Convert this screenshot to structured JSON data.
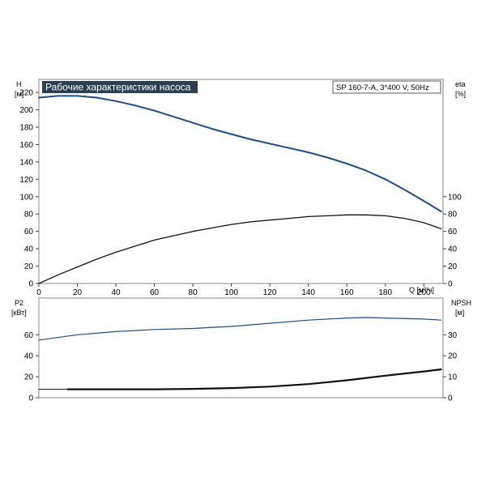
{
  "chart_data": [
    {
      "type": "line",
      "title": "Рабочие характеристики насоса",
      "subtitle": "SP 160-7-A, 3*400 V, 50Hz",
      "xlabel": "Q [м³/ч]",
      "ylabel": "H",
      "ylabel_unit": "[м]",
      "y2label": "eta",
      "y2label_unit": "[%]",
      "xlim": [
        0,
        210
      ],
      "ylim": [
        0,
        235
      ],
      "y2lim": [
        0,
        235
      ],
      "x_ticks": [
        "0",
        "20",
        "40",
        "60",
        "80",
        "100",
        "120",
        "140",
        "160",
        "180",
        "200"
      ],
      "y_ticks": [
        "0",
        "20",
        "40",
        "60",
        "80",
        "100",
        "120",
        "140",
        "160",
        "180",
        "200",
        "220"
      ],
      "y2_ticks": [
        "0",
        "20",
        "40",
        "60",
        "80",
        "100"
      ],
      "grid": false,
      "series": [
        {
          "axis": "left",
          "color": "#1c4f86",
          "x": [
            0,
            10,
            20,
            30,
            40,
            50,
            60,
            70,
            80,
            90,
            100,
            110,
            120,
            130,
            140,
            150,
            160,
            170,
            180,
            190,
            200,
            209
          ],
          "values": [
            214,
            216,
            216,
            214,
            210,
            205,
            199,
            192,
            185,
            178,
            172,
            166,
            161,
            156,
            151,
            145,
            138,
            130,
            120,
            108,
            95,
            83
          ]
        },
        {
          "axis": "right",
          "color": "#111111",
          "x": [
            0,
            10,
            20,
            30,
            40,
            50,
            60,
            70,
            80,
            90,
            100,
            110,
            120,
            130,
            140,
            150,
            160,
            170,
            180,
            190,
            200,
            209
          ],
          "values": [
            0,
            10,
            19,
            28,
            36,
            43,
            50,
            55,
            60,
            64,
            68,
            71,
            73,
            75,
            77,
            78,
            79,
            79,
            78,
            75,
            70,
            63
          ]
        }
      ]
    },
    {
      "type": "line",
      "ylabel": "P2",
      "ylabel_unit": "[кВт]",
      "y2label": "NPSH",
      "y2label_unit": "[м]",
      "xlim": [
        0,
        210
      ],
      "ylim": [
        0,
        95
      ],
      "y2lim": [
        0,
        47.5
      ],
      "y_ticks": [
        "0",
        "20",
        "40",
        "60"
      ],
      "y2_ticks": [
        "0",
        "10",
        "20",
        "30"
      ],
      "grid": false,
      "series": [
        {
          "axis": "left",
          "color": "#1c4f86",
          "x": [
            0,
            20,
            40,
            60,
            80,
            100,
            120,
            140,
            160,
            170,
            180,
            200,
            209
          ],
          "values": [
            55,
            60,
            63,
            65,
            66,
            68,
            71,
            74,
            76,
            76.5,
            76,
            75,
            74
          ]
        },
        {
          "axis": "right",
          "color": "#111111",
          "x": [
            15,
            40,
            60,
            80,
            100,
            120,
            140,
            160,
            180,
            200,
            209
          ],
          "values": [
            4,
            4,
            4,
            4.2,
            4.6,
            5.3,
            6.5,
            8.3,
            10.5,
            12.5,
            13.5
          ]
        },
        {
          "axis": "right",
          "color": "#111111",
          "x": [
            0,
            15
          ],
          "values": [
            4,
            4
          ]
        }
      ]
    }
  ]
}
